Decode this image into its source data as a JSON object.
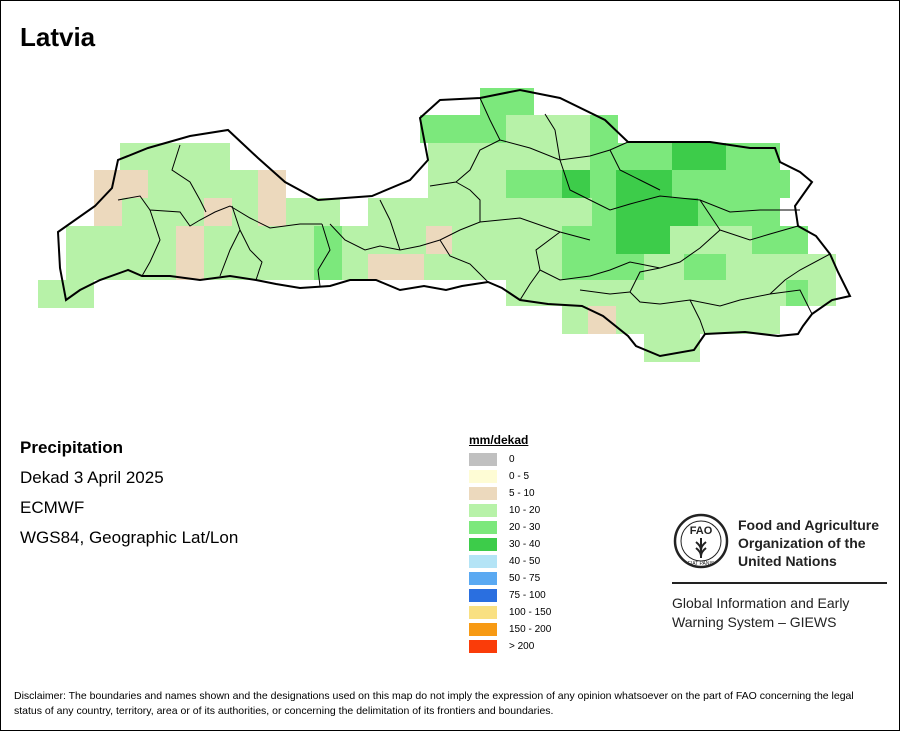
{
  "map": {
    "title": "Latvia",
    "variable": "Precipitation",
    "period": "Dekad 3 April 2025",
    "source": "ECMWF",
    "projection": "WGS84, Geographic Lat/Lon"
  },
  "legend": {
    "title": "mm/dekad",
    "classes": [
      {
        "label": "0",
        "color": "#c0c0c0"
      },
      {
        "label": "0 - 5",
        "color": "#fefcd5"
      },
      {
        "label": "5 - 10",
        "color": "#ecd9bd"
      },
      {
        "label": "10 - 20",
        "color": "#b7f2a8"
      },
      {
        "label": "20 - 30",
        "color": "#7ce87c"
      },
      {
        "label": "30 - 40",
        "color": "#3dcc4a"
      },
      {
        "label": "40 - 50",
        "color": "#b4e4f6"
      },
      {
        "label": "50 - 75",
        "color": "#5aa9f2"
      },
      {
        "label": "75 - 100",
        "color": "#2a6fe0"
      },
      {
        "label": "100 - 150",
        "color": "#f9e082"
      },
      {
        "label": "150 - 200",
        "color": "#f79a14"
      },
      {
        "label": "> 200",
        "color": "#fa3c09"
      }
    ]
  },
  "logo": {
    "org_name": "Food and Agriculture Organization of the United Nations",
    "emblem_text": "FAO",
    "motto": "FIAT PANIS",
    "system_name": "Global Information and Early Warning System – GIEWS"
  },
  "disclaimer": "Disclaimer: The boundaries and names shown and the designations used on this map do not imply the expression of any opinion whatsoever on the part of FAO concerning the legal status of any country, territory, area or of its authorities, or concerning the delimitation of its frontiers and boundaries."
}
